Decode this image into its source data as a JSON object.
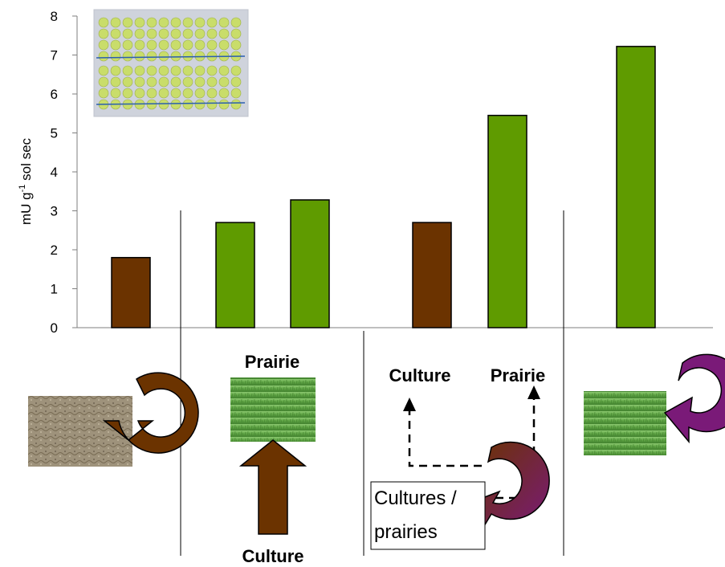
{
  "chart_data": {
    "type": "bar",
    "ylabel_main": "mU g",
    "ylabel_sup": "-1",
    "ylabel_tail": " sol sec",
    "ylim": [
      0,
      8
    ],
    "yticks": [
      "0",
      "1",
      "2",
      "3",
      "4",
      "5",
      "6",
      "7",
      "8"
    ],
    "grid": false,
    "bars": [
      {
        "value": 1.8,
        "color": "#6b3300"
      },
      {
        "value": 2.7,
        "color": "#5f9b00"
      },
      {
        "value": 3.28,
        "color": "#5f9b00"
      },
      {
        "value": 2.7,
        "color": "#6b3300"
      },
      {
        "value": 5.45,
        "color": "#5f9b00"
      },
      {
        "value": 7.22,
        "color": "#5f9b00"
      }
    ]
  },
  "annotations": {
    "group2_top": "Prairie",
    "group2_bottom": "Culture",
    "group3_left": "Culture",
    "group3_right": "Prairie",
    "group3_box_line1": "Cultures /",
    "group3_box_line2": "prairies"
  },
  "colors": {
    "brown": "#6b3300",
    "green": "#5f9b00",
    "purple": "#7a1a78"
  }
}
